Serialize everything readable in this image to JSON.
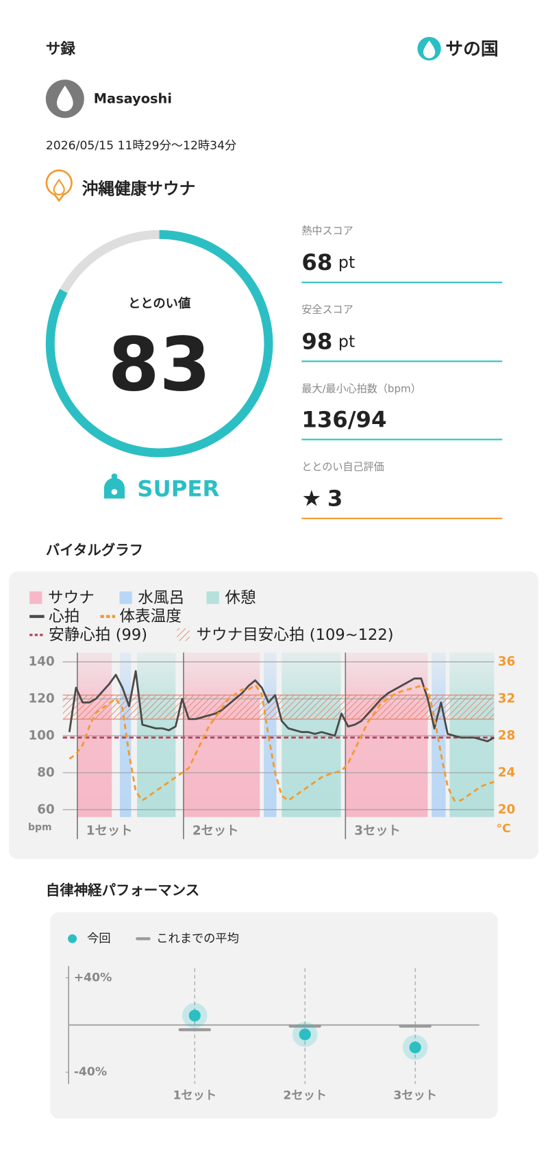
{
  "header": {
    "title": "サ録",
    "logo": "サの国"
  },
  "profile": {
    "name": "Masayoshi"
  },
  "session": {
    "time": "2026/05/15 11時29分〜12時34分",
    "facility": "沖縄健康サウナ"
  },
  "totonoi": {
    "label": "ととのい値",
    "value": 83,
    "range": [
      0,
      100
    ],
    "rank": "SUPER"
  },
  "scores": [
    {
      "label": "熱中スコア",
      "value": 68,
      "unit": "pt"
    },
    {
      "label": "安全スコア",
      "value": 98,
      "unit": "pt"
    },
    {
      "label": "最大/最小心拍数（bpm）",
      "value": "136/94"
    },
    {
      "label": "ととのい自己評価",
      "icon": "★",
      "value": 3
    }
  ],
  "sections": {
    "vital": "バイタルグラフ",
    "autonomic": "自律神経パフォーマンス"
  },
  "chart_data": [
    {
      "type": "line",
      "bands": [
        {
          "name": "サウナ",
          "color": "#f6b8c6",
          "ranges": [
            [
              2.2,
              7.4
            ],
            [
              18.2,
              29.7
            ],
            [
              42.6,
              55
            ]
          ]
        },
        {
          "name": "水風呂",
          "color": "#b9d7f5",
          "ranges": [
            [
              8.6,
              10.3
            ],
            [
              30.3,
              32.2
            ],
            [
              55.6,
              57.7
            ]
          ]
        },
        {
          "name": "休憩",
          "color": "#b5e0dc",
          "ranges": [
            [
              11.2,
              17
            ],
            [
              33,
              41.9
            ],
            [
              58.3,
              65
            ]
          ]
        }
      ],
      "x": [
        1,
        2,
        3,
        4,
        5,
        6,
        7,
        8,
        9,
        10,
        11,
        12,
        13,
        14,
        15,
        16,
        17,
        18,
        19,
        20,
        21,
        22,
        23,
        24,
        25,
        26,
        27,
        28,
        29,
        30,
        31,
        32,
        33,
        34,
        35,
        36,
        37,
        38,
        39,
        40,
        41,
        42,
        43,
        44,
        45,
        46,
        47,
        48,
        49,
        50,
        51,
        52,
        53,
        54,
        55,
        56,
        57,
        58,
        59,
        60,
        61,
        62,
        63,
        64,
        65
      ],
      "xlim": [
        0,
        65
      ],
      "series": [
        {
          "name": "心拍",
          "color": "#4a4a4a",
          "values": [
            102,
            126,
            118,
            118,
            120,
            124,
            128,
            133,
            126,
            116,
            135,
            106,
            105,
            104,
            104,
            103,
            105,
            120,
            109,
            109,
            110,
            111,
            112,
            114,
            117,
            120,
            123,
            127,
            130,
            126,
            118,
            122,
            108,
            104,
            103,
            102,
            102,
            101,
            102,
            101,
            100,
            112,
            105,
            106,
            108,
            112,
            116,
            120,
            123,
            125,
            127,
            129,
            131,
            131,
            120,
            104,
            118,
            101,
            100,
            99,
            99,
            99,
            98,
            97,
            99
          ]
        },
        {
          "name": "体表温度",
          "color": "#f39a2e",
          "dashed": true,
          "axis": "y2",
          "values": [
            25.5,
            26,
            27,
            29,
            30.5,
            31,
            31.5,
            32,
            31,
            26,
            22,
            21,
            21.5,
            22,
            22.5,
            23,
            23.5,
            24,
            24.5,
            26,
            27.5,
            29,
            30,
            31,
            32,
            32.5,
            33,
            33,
            33.5,
            32.5,
            28,
            24,
            21.5,
            21,
            21.5,
            22,
            22.5,
            23,
            23.5,
            23.8,
            24,
            24.2,
            25,
            26.5,
            28,
            29.5,
            30.5,
            31.5,
            32,
            32.5,
            32.8,
            33,
            33.2,
            33.4,
            33,
            30,
            26,
            22.5,
            21,
            21,
            21.5,
            22,
            22.5,
            22.8,
            23
          ]
        }
      ],
      "reference_lines": [
        {
          "name": "安静心拍 (99)",
          "value": 99,
          "color": "#c0395a"
        }
      ],
      "reference_bands": [
        {
          "name": "サウナ目安心拍 (109~122)",
          "range": [
            109,
            122
          ],
          "color": "#e8795a"
        }
      ],
      "ylim": [
        56,
        145
      ],
      "yticks": [
        60,
        80,
        100,
        120,
        140
      ],
      "ylabel": "bpm",
      "y2lim": [
        19.2,
        37
      ],
      "y2ticks": [
        20,
        24,
        28,
        32,
        36
      ],
      "y2label": "°C",
      "sets": [
        {
          "label": "1セット",
          "start": 2.2
        },
        {
          "label": "2セット",
          "start": 18.2
        },
        {
          "label": "3セット",
          "start": 42.6
        }
      ],
      "grid": true
    },
    {
      "type": "dot",
      "categories": [
        "1セット",
        "2セット",
        "3セット"
      ],
      "series": [
        {
          "name": "今回",
          "color": "#2bbfc4",
          "values": [
            8,
            -8,
            -19
          ]
        },
        {
          "name": "これまでの平均",
          "color": "#9a9a9a",
          "values": [
            -4,
            -1,
            -1
          ]
        }
      ],
      "ylim": [
        -50,
        50
      ],
      "yticks": [
        {
          "value": 40,
          "label": "+40%"
        },
        {
          "value": -40,
          "label": "-40%"
        }
      ]
    }
  ]
}
